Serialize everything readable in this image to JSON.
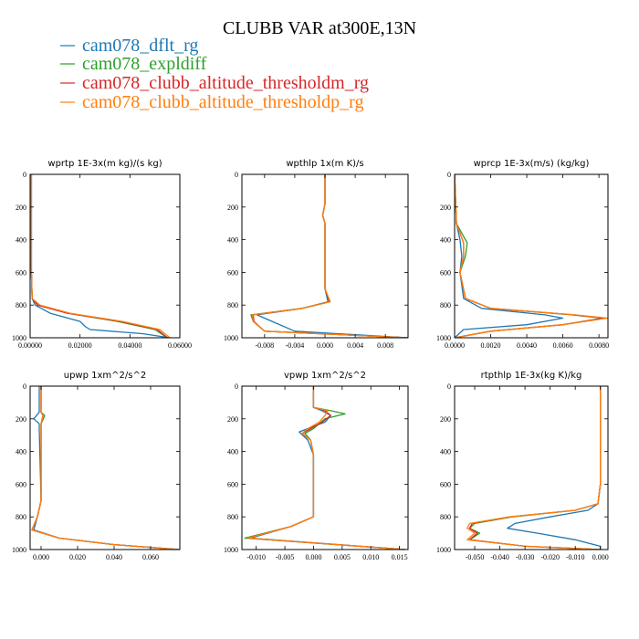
{
  "figure": {
    "title": "CLUBB VAR at300E,13N"
  },
  "legend": [
    {
      "name": "cam078_dflt_rg",
      "color": "#1f77b4"
    },
    {
      "name": "cam078_expldiff",
      "color": "#2ca02c"
    },
    {
      "name": "cam078_clubb_altitude_thresholdm_rg",
      "color": "#d62728"
    },
    {
      "name": "cam078_clubb_altitude_thresholdp_rg",
      "color": "#ff7f0e"
    }
  ],
  "chart_data": [
    {
      "type": "line",
      "title": "wprtp  1E-3x(m kg)/(s kg)",
      "xlim": [
        0.0,
        0.06
      ],
      "ylim": [
        1000,
        0
      ],
      "xticks": [
        0.0,
        0.02,
        0.04,
        0.06
      ],
      "xtick_labels": [
        "0.00000",
        "0.02000",
        "0.04000",
        "0.06000"
      ],
      "yticks": [
        0,
        200,
        400,
        600,
        800,
        1000
      ],
      "series": [
        {
          "name": "cam078_dflt_rg",
          "x": [
            0.0005,
            0.0005,
            0.0008,
            0.002,
            0.008,
            0.02,
            0.022,
            0.024,
            0.045,
            0.056
          ],
          "y": [
            0,
            600,
            760,
            800,
            850,
            900,
            930,
            950,
            975,
            1000
          ]
        },
        {
          "name": "cam078_expldiff",
          "x": [
            0.0005,
            0.0005,
            0.0008,
            0.003,
            0.015,
            0.035,
            0.05,
            0.055
          ],
          "y": [
            0,
            600,
            760,
            800,
            850,
            900,
            950,
            1000
          ]
        },
        {
          "name": "cam078_clubb_altitude_thresholdm_rg",
          "x": [
            0.0005,
            0.0005,
            0.0008,
            0.003,
            0.015,
            0.036,
            0.051,
            0.055
          ],
          "y": [
            0,
            600,
            760,
            800,
            850,
            900,
            950,
            1000
          ]
        },
        {
          "name": "cam078_clubb_altitude_thresholdp_rg",
          "x": [
            0.0005,
            0.0005,
            0.0008,
            0.004,
            0.016,
            0.037,
            0.052,
            0.056
          ],
          "y": [
            0,
            600,
            760,
            800,
            850,
            900,
            950,
            1000
          ]
        }
      ]
    },
    {
      "type": "line",
      "title": "wpthlp  1x(m K)/s",
      "xlim": [
        -0.011,
        0.011
      ],
      "ylim": [
        1000,
        0
      ],
      "xticks": [
        -0.008,
        -0.004,
        0.0,
        0.004,
        0.008
      ],
      "xtick_labels": [
        "-0.008",
        "-0.004",
        "0.000",
        "0.004",
        "0.008"
      ],
      "yticks": [
        0,
        200,
        400,
        600,
        800,
        1000
      ],
      "series": [
        {
          "name": "cam078_dflt_rg",
          "x": [
            0.0,
            0.0,
            -0.0003,
            0.0,
            0.0,
            0.0004,
            -0.003,
            -0.009,
            -0.007,
            -0.004,
            0.011
          ],
          "y": [
            0,
            180,
            250,
            300,
            700,
            780,
            820,
            860,
            900,
            960,
            1000
          ]
        },
        {
          "name": "cam078_expldiff",
          "x": [
            0.0,
            0.0,
            -0.0003,
            0.0,
            0.0,
            0.0006,
            -0.003,
            -0.0098,
            -0.0095,
            -0.008,
            0.011
          ],
          "y": [
            0,
            180,
            250,
            300,
            700,
            780,
            820,
            860,
            900,
            960,
            1000
          ]
        },
        {
          "name": "cam078_clubb_altitude_thresholdm_rg",
          "x": [
            0.0,
            0.0,
            -0.0003,
            0.0,
            0.0,
            0.0006,
            -0.003,
            -0.0095,
            -0.0094,
            -0.008,
            0.011
          ],
          "y": [
            0,
            180,
            250,
            300,
            700,
            780,
            820,
            860,
            900,
            960,
            1000
          ]
        },
        {
          "name": "cam078_clubb_altitude_thresholdp_rg",
          "x": [
            0.0,
            0.0,
            -0.0003,
            0.0,
            0.0,
            0.0007,
            -0.003,
            -0.0096,
            -0.0095,
            -0.008,
            0.011
          ],
          "y": [
            0,
            180,
            250,
            300,
            700,
            780,
            820,
            860,
            900,
            960,
            1000
          ]
        }
      ]
    },
    {
      "type": "line",
      "title": "wprcp  1E-3x(m/s) (kg/kg)",
      "xlim": [
        0.0,
        0.0085
      ],
      "ylim": [
        1000,
        0
      ],
      "xticks": [
        0.0,
        0.002,
        0.004,
        0.006,
        0.008
      ],
      "xtick_labels": [
        "0.0000",
        "0.0020",
        "0.0040",
        "0.0060",
        "0.0080"
      ],
      "yticks": [
        0,
        200,
        400,
        600,
        800,
        1000
      ],
      "series": [
        {
          "name": "cam078_dflt_rg",
          "x": [
            0.0,
            0.0001,
            0.0003,
            0.0004,
            0.0003,
            0.0005,
            0.0015,
            0.005,
            0.006,
            0.004,
            0.0005,
            0.0
          ],
          "y": [
            0,
            300,
            400,
            500,
            600,
            760,
            820,
            860,
            880,
            920,
            950,
            1000
          ]
        },
        {
          "name": "cam078_expldiff",
          "x": [
            0.0,
            0.0001,
            0.0007,
            0.0006,
            0.0003,
            0.0006,
            0.002,
            0.0065,
            0.0082,
            0.006,
            0.002,
            0.0
          ],
          "y": [
            0,
            300,
            420,
            500,
            600,
            760,
            820,
            860,
            880,
            920,
            960,
            1000
          ]
        },
        {
          "name": "cam078_clubb_altitude_thresholdm_rg",
          "x": [
            0.0,
            0.0001,
            0.0005,
            0.0005,
            0.0003,
            0.0006,
            0.002,
            0.0066,
            0.0083,
            0.006,
            0.002,
            0.0
          ],
          "y": [
            0,
            300,
            420,
            500,
            600,
            760,
            820,
            860,
            880,
            920,
            960,
            1000
          ]
        },
        {
          "name": "cam078_clubb_altitude_thresholdp_rg",
          "x": [
            0.0,
            0.0001,
            0.0005,
            0.0005,
            0.0003,
            0.0006,
            0.002,
            0.0067,
            0.0085,
            0.006,
            0.002,
            0.0
          ],
          "y": [
            0,
            300,
            420,
            500,
            600,
            760,
            820,
            860,
            880,
            920,
            960,
            1000
          ]
        }
      ]
    },
    {
      "type": "line",
      "title": "upwp  1xm^2/s^2",
      "xlim": [
        -0.006,
        0.076
      ],
      "ylim": [
        1000,
        0
      ],
      "xticks": [
        0.0,
        0.02,
        0.04,
        0.06
      ],
      "xtick_labels": [
        "0.000",
        "0.020",
        "0.040",
        "0.060"
      ],
      "yticks": [
        0,
        200,
        400,
        600,
        800,
        1000
      ],
      "series": [
        {
          "name": "cam078_dflt_rg",
          "x": [
            -0.001,
            -0.001,
            -0.004,
            -0.001,
            -0.001,
            0.0,
            -0.002,
            -0.004,
            0.01,
            0.04,
            0.076
          ],
          "y": [
            0,
            160,
            200,
            230,
            260,
            700,
            800,
            880,
            930,
            970,
            1000
          ]
        },
        {
          "name": "cam078_expldiff",
          "x": [
            0.0,
            0.0,
            0.002,
            0.0,
            0.0,
            0.0,
            -0.002,
            -0.005,
            0.01,
            0.04,
            0.075
          ],
          "y": [
            0,
            160,
            180,
            230,
            260,
            700,
            800,
            880,
            930,
            970,
            1000
          ]
        },
        {
          "name": "cam078_clubb_altitude_thresholdm_rg",
          "x": [
            0.0,
            0.0,
            0.001,
            0.0,
            0.0,
            0.0,
            -0.002,
            -0.005,
            0.01,
            0.04,
            0.075
          ],
          "y": [
            0,
            160,
            180,
            230,
            260,
            700,
            800,
            880,
            930,
            970,
            1000
          ]
        },
        {
          "name": "cam078_clubb_altitude_thresholdp_rg",
          "x": [
            0.0,
            0.0,
            0.001,
            0.0,
            0.0,
            0.0,
            -0.002,
            -0.005,
            0.01,
            0.04,
            0.075
          ],
          "y": [
            0,
            160,
            180,
            230,
            260,
            700,
            800,
            880,
            930,
            970,
            1000
          ]
        }
      ]
    },
    {
      "type": "line",
      "title": "vpwp  1xm^2/s^2",
      "xlim": [
        -0.0125,
        0.0165
      ],
      "ylim": [
        1000,
        0
      ],
      "xticks": [
        -0.01,
        -0.005,
        0.0,
        0.005,
        0.01,
        0.015
      ],
      "xtick_labels": [
        "-0.010",
        "-0.005",
        "0.000",
        "0.005",
        "0.010",
        "0.015"
      ],
      "yticks": [
        0,
        200,
        400,
        600,
        800,
        1000
      ],
      "series": [
        {
          "name": "cam078_dflt_rg",
          "x": [
            0.0,
            0.0,
            0.0015,
            0.003,
            0.002,
            -0.001,
            -0.0025,
            -0.001,
            0.0,
            0.0,
            -0.004,
            -0.011,
            0.016
          ],
          "y": [
            0,
            130,
            150,
            180,
            220,
            260,
            280,
            330,
            420,
            800,
            860,
            930,
            1000
          ]
        },
        {
          "name": "cam078_expldiff",
          "x": [
            0.0,
            0.0,
            0.003,
            0.0055,
            0.002,
            0.0,
            -0.0015,
            -0.0005,
            0.0,
            0.0,
            -0.004,
            -0.012,
            0.016
          ],
          "y": [
            0,
            130,
            150,
            170,
            200,
            260,
            290,
            330,
            420,
            800,
            860,
            930,
            1000
          ]
        },
        {
          "name": "cam078_clubb_altitude_thresholdm_rg",
          "x": [
            0.0,
            0.0,
            0.002,
            0.003,
            0.0015,
            -0.0005,
            -0.002,
            -0.0005,
            0.0,
            0.0,
            -0.004,
            -0.0115,
            0.016
          ],
          "y": [
            0,
            130,
            150,
            180,
            220,
            260,
            290,
            330,
            420,
            800,
            860,
            930,
            1000
          ]
        },
        {
          "name": "cam078_clubb_altitude_thresholdp_rg",
          "x": [
            0.0,
            0.0,
            0.0025,
            0.002,
            0.001,
            -0.001,
            -0.002,
            -0.0005,
            0.0,
            0.0,
            -0.004,
            -0.0115,
            0.016
          ],
          "y": [
            0,
            130,
            150,
            180,
            220,
            260,
            290,
            330,
            420,
            800,
            860,
            930,
            1000
          ]
        }
      ]
    },
    {
      "type": "line",
      "title": "rtpthlp  1E-3x(kg K)/kg",
      "xlim": [
        -0.058,
        0.003
      ],
      "ylim": [
        1000,
        0
      ],
      "xticks": [
        -0.05,
        -0.04,
        -0.03,
        -0.02,
        -0.01,
        0.0
      ],
      "xtick_labels": [
        "-0.050",
        "-0.040",
        "-0.030",
        "-0.020",
        "-0.010",
        "0.000"
      ],
      "yticks": [
        0,
        200,
        400,
        600,
        800,
        1000
      ],
      "series": [
        {
          "name": "cam078_dflt_rg",
          "x": [
            0.0,
            0.0,
            -0.001,
            -0.005,
            -0.02,
            -0.034,
            -0.037,
            -0.025,
            -0.01,
            0.0,
            0.0
          ],
          "y": [
            0,
            600,
            720,
            760,
            800,
            840,
            870,
            900,
            940,
            980,
            1000
          ]
        },
        {
          "name": "cam078_expldiff",
          "x": [
            0.0,
            0.0,
            -0.001,
            -0.01,
            -0.035,
            -0.05,
            -0.052,
            -0.048,
            -0.052,
            -0.03,
            0.0
          ],
          "y": [
            0,
            600,
            720,
            760,
            800,
            840,
            870,
            900,
            940,
            980,
            1000
          ]
        },
        {
          "name": "cam078_clubb_altitude_thresholdm_rg",
          "x": [
            0.0,
            0.0,
            -0.001,
            -0.01,
            -0.036,
            -0.051,
            -0.052,
            -0.049,
            -0.052,
            -0.03,
            0.0
          ],
          "y": [
            0,
            600,
            720,
            760,
            800,
            840,
            870,
            900,
            940,
            980,
            1000
          ]
        },
        {
          "name": "cam078_clubb_altitude_thresholdp_rg",
          "x": [
            0.0,
            0.0,
            -0.001,
            -0.01,
            -0.036,
            -0.052,
            -0.053,
            -0.05,
            -0.053,
            -0.03,
            0.0
          ],
          "y": [
            0,
            600,
            720,
            760,
            800,
            840,
            870,
            900,
            940,
            980,
            1000
          ]
        }
      ]
    }
  ]
}
